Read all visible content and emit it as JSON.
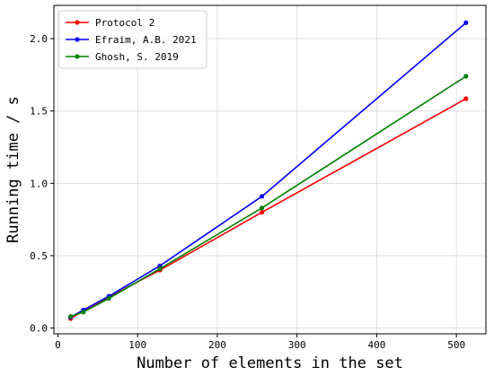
{
  "chart_data": {
    "type": "line",
    "title": "",
    "xlabel": "Number of elements in the set",
    "ylabel": "Running time / s",
    "xlim": [
      -5,
      537
    ],
    "ylim": [
      -0.04,
      2.23
    ],
    "xticks": [
      0,
      100,
      200,
      300,
      400,
      500
    ],
    "yticks": [
      0.0,
      0.5,
      1.0,
      1.5,
      2.0
    ],
    "xtick_labels": [
      "0",
      "100",
      "200",
      "300",
      "400",
      "500"
    ],
    "ytick_labels": [
      "0.0",
      "0.5",
      "1.0",
      "1.5",
      "2.0"
    ],
    "grid": true,
    "legend_position": "top-left",
    "x": [
      16,
      32,
      64,
      128,
      256,
      512
    ],
    "series": [
      {
        "name": "Protocol 2",
        "color": "#ff0000",
        "values": [
          0.065,
          0.12,
          0.215,
          0.4,
          0.8,
          1.585
        ]
      },
      {
        "name": "Efraim, A.B. 2021",
        "color": "#0000ff",
        "values": [
          0.075,
          0.125,
          0.22,
          0.43,
          0.91,
          2.11
        ]
      },
      {
        "name": "Ghosh, S. 2019",
        "color": "#008000",
        "values": [
          0.08,
          0.11,
          0.205,
          0.41,
          0.83,
          1.74
        ]
      }
    ]
  }
}
